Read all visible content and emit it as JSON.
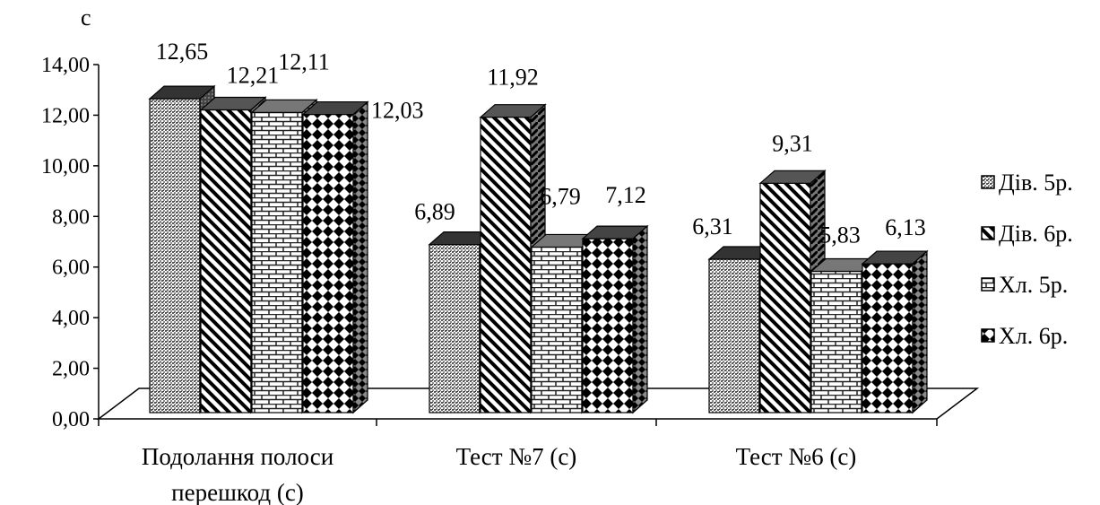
{
  "chart_data": {
    "type": "bar",
    "y_unit_label": "с",
    "ylim": [
      0,
      14
    ],
    "y_ticks": [
      "0,00",
      "2,00",
      "4,00",
      "6,00",
      "8,00",
      "10,00",
      "12,00",
      "14,00"
    ],
    "categories": [
      [
        "Подолання полоси",
        "перешкод (с)"
      ],
      [
        "Тест №7 (с)"
      ],
      [
        "Тест №6 (с)"
      ]
    ],
    "series": [
      {
        "name": "Дів. 5р.",
        "values": [
          12.65,
          6.89,
          6.31
        ],
        "labels": [
          "12,65",
          "6,89",
          "6,31"
        ]
      },
      {
        "name": "Дів. 6р.",
        "values": [
          12.21,
          11.92,
          9.31
        ],
        "labels": [
          "12,21",
          "11,92",
          "9,31"
        ]
      },
      {
        "name": "Хл. 5р.",
        "values": [
          12.11,
          6.79,
          5.83
        ],
        "labels": [
          "12,11",
          "6,79",
          "5,83"
        ]
      },
      {
        "name": "Хл. 6р.",
        "values": [
          12.03,
          7.12,
          6.13
        ],
        "labels": [
          "12,03",
          "7,12",
          "6,13"
        ]
      }
    ],
    "legend_position": "right",
    "style": "3d-clustered-column",
    "colors": {
      "ink": "#000000",
      "fill": "#ffffff",
      "top_face": "#222222"
    }
  }
}
